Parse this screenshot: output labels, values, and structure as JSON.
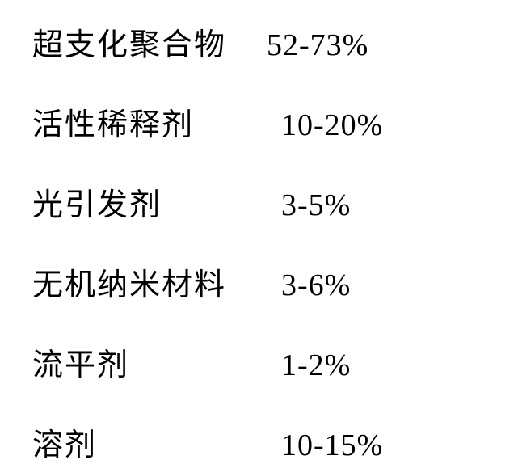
{
  "table": {
    "rows": [
      {
        "label": "超支化聚合物",
        "value": "52-73%",
        "pad": false
      },
      {
        "label": "活性稀释剂",
        "value": "10-20%",
        "pad": true
      },
      {
        "label": "光引发剂",
        "value": "3-5%",
        "pad": true
      },
      {
        "label": "无机纳米材料",
        "value": "3-6%",
        "pad": true
      },
      {
        "label": "流平剂",
        "value": "1-2%",
        "pad": true
      },
      {
        "label": "溶剂",
        "value": "10-15%",
        "pad": true
      }
    ],
    "label_fontsize": 38,
    "value_fontsize": 38,
    "text_color": "#000000",
    "background_color": "#ffffff",
    "row_gap": 44,
    "label_width": 290
  }
}
